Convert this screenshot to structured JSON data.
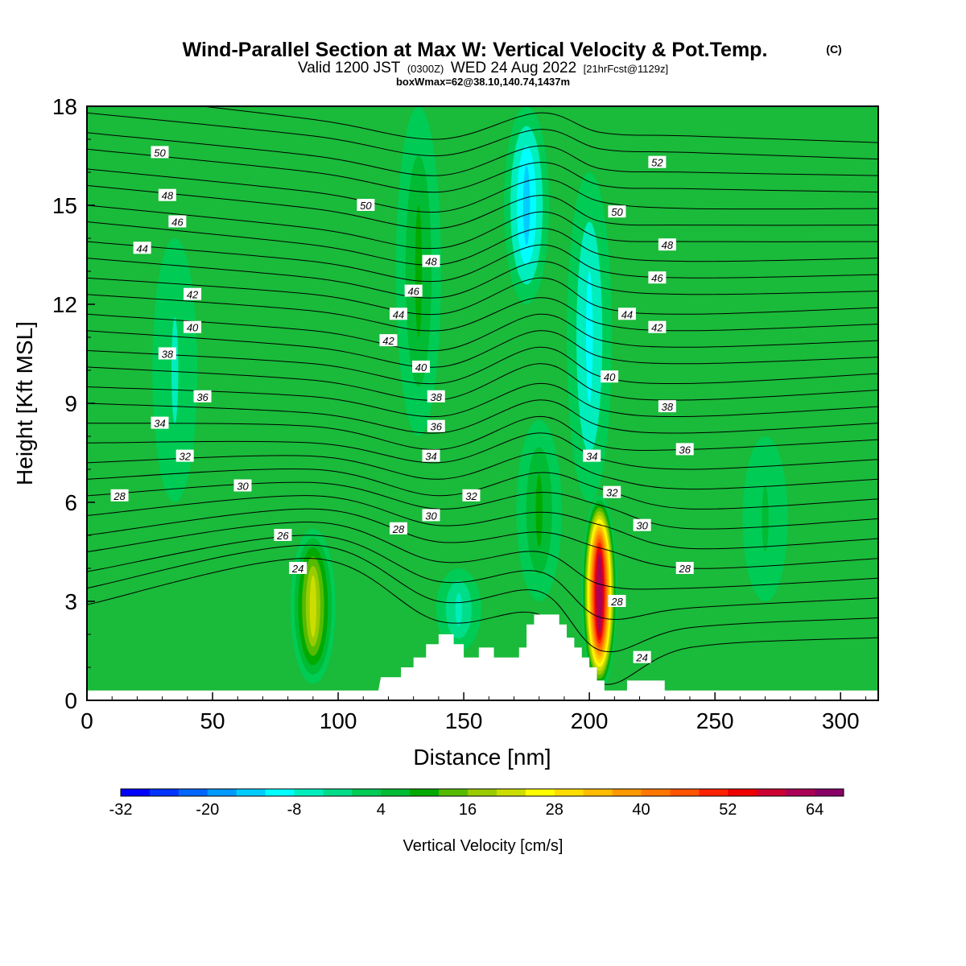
{
  "chart_data": {
    "type": "heatmap",
    "title": "Wind-Parallel Section at Max W: Vertical Velocity & Pot.Temp.",
    "title_mark": "(C)",
    "subtitle": {
      "prefix": "Valid 1200 JST",
      "utc": "(0300Z)",
      "date": "WED 24 Aug 2022",
      "forecast": "[21hrFcst@1129z]"
    },
    "box_info": "boxWmax=62@38.10,140.74,1437m",
    "xlabel": "Distance [nm]",
    "ylabel": "Height [Kft MSL]",
    "xlim": [
      0,
      315
    ],
    "ylim": [
      0,
      18
    ],
    "x_ticks": [
      {
        "value": 0,
        "label": "0"
      },
      {
        "value": 50,
        "label": "50"
      },
      {
        "value": 100,
        "label": "100"
      },
      {
        "value": 150,
        "label": "150"
      },
      {
        "value": 200,
        "label": "200"
      },
      {
        "value": 250,
        "label": "250"
      },
      {
        "value": 300,
        "label": "300"
      }
    ],
    "y_ticks": [
      {
        "value": 0,
        "label": "0"
      },
      {
        "value": 3,
        "label": "3"
      },
      {
        "value": 6,
        "label": "6"
      },
      {
        "value": 9,
        "label": "9"
      },
      {
        "value": 12,
        "label": "12"
      },
      {
        "value": 15,
        "label": "15"
      },
      {
        "value": 18,
        "label": "18"
      }
    ],
    "colorbar": {
      "label": "Vertical Velocity [cm/s]",
      "min": -32,
      "max": 68,
      "step": 4,
      "colors": [
        "#0000ff",
        "#0033ff",
        "#0066ff",
        "#0099ff",
        "#00ccff",
        "#00ffff",
        "#00eebb",
        "#00dd88",
        "#00cc55",
        "#00bb33",
        "#00aa00",
        "#55bb00",
        "#99cc00",
        "#ccdd00",
        "#ffff00",
        "#ffdd00",
        "#ffbb00",
        "#ff9900",
        "#ff7700",
        "#ff5500",
        "#ff2200",
        "#ee0000",
        "#cc0033",
        "#aa0055",
        "#880066"
      ],
      "tick_labels": [
        {
          "value": -32,
          "label": "-32"
        },
        {
          "value": -20,
          "label": "-20"
        },
        {
          "value": -8,
          "label": "-8"
        },
        {
          "value": 4,
          "label": "4"
        },
        {
          "value": 16,
          "label": "16"
        },
        {
          "value": 28,
          "label": "28"
        },
        {
          "value": 40,
          "label": "40"
        },
        {
          "value": 52,
          "label": "52"
        },
        {
          "value": 64,
          "label": "64"
        }
      ]
    },
    "vertical_velocity_features": [
      {
        "x": 90,
        "z_bottom": 0.5,
        "z_top": 5.2,
        "peak": 20
      },
      {
        "x": 204,
        "z_bottom": 0.3,
        "z_top": 6.2,
        "peak": 60
      },
      {
        "x": 180,
        "z_bottom": 3.0,
        "z_top": 8.5,
        "peak": 8
      },
      {
        "x": 132,
        "z_bottom": 8.0,
        "z_top": 18.0,
        "peak": 8
      },
      {
        "x": 270,
        "z_bottom": 3.0,
        "z_top": 8.0,
        "peak": 6
      },
      {
        "x": 175,
        "z_bottom": 12.0,
        "z_top": 18.0,
        "peak": -14
      },
      {
        "x": 200,
        "z_bottom": 6.0,
        "z_top": 16.0,
        "peak": -10
      },
      {
        "x": 35,
        "z_bottom": 6.0,
        "z_top": 14.0,
        "peak": -6
      },
      {
        "x": 148,
        "z_bottom": 1.5,
        "z_top": 4.0,
        "peak": -8
      }
    ],
    "terrain_profile": [
      [
        0,
        0.3
      ],
      [
        116,
        0.3
      ],
      [
        117,
        0.7
      ],
      [
        125,
        0.7
      ],
      [
        125,
        1.0
      ],
      [
        130,
        1.0
      ],
      [
        130,
        1.3
      ],
      [
        135,
        1.3
      ],
      [
        135,
        1.7
      ],
      [
        140,
        1.7
      ],
      [
        140,
        2.0
      ],
      [
        146,
        2.0
      ],
      [
        146,
        1.7
      ],
      [
        150,
        1.7
      ],
      [
        150,
        1.3
      ],
      [
        156,
        1.3
      ],
      [
        156,
        1.6
      ],
      [
        162,
        1.6
      ],
      [
        162,
        1.3
      ],
      [
        172,
        1.3
      ],
      [
        172,
        1.6
      ],
      [
        175,
        1.6
      ],
      [
        175,
        2.3
      ],
      [
        178,
        2.3
      ],
      [
        178,
        2.6
      ],
      [
        188,
        2.6
      ],
      [
        188,
        2.3
      ],
      [
        191,
        2.3
      ],
      [
        191,
        1.9
      ],
      [
        194,
        1.9
      ],
      [
        194,
        1.6
      ],
      [
        197,
        1.6
      ],
      [
        197,
        1.3
      ],
      [
        200,
        1.3
      ],
      [
        200,
        1.0
      ],
      [
        203,
        1.0
      ],
      [
        203,
        0.6
      ],
      [
        206,
        0.6
      ],
      [
        206,
        0.3
      ],
      [
        215,
        0.3
      ],
      [
        215,
        0.6
      ],
      [
        230,
        0.6
      ],
      [
        230,
        0.3
      ],
      [
        315,
        0.3
      ]
    ],
    "potential_temperature_contours": {
      "levels": [
        24,
        25,
        26,
        27,
        28,
        29,
        30,
        31,
        32,
        33,
        34,
        35,
        36,
        37,
        38,
        39,
        40,
        41,
        42,
        43,
        44,
        45,
        46,
        47,
        48,
        49,
        50,
        51,
        52
      ],
      "height_at_x": [
        {
          "x": 0,
          "heights": [
            2.9,
            3.4,
            3.9,
            4.5,
            5.0,
            5.6,
            6.2,
            6.7,
            7.2,
            7.8,
            8.4,
            9.0,
            9.5,
            10.1,
            10.6,
            11.2,
            11.7,
            12.3,
            12.8,
            13.4,
            13.9,
            14.5,
            15.0,
            15.6,
            16.1,
            16.7,
            17.2,
            17.8,
            18.4
          ]
        },
        {
          "x": 90,
          "heights": [
            4.3,
            4.7,
            5.0,
            5.4,
            5.8,
            6.2,
            6.6,
            7.0,
            7.4,
            7.8,
            8.3,
            8.7,
            9.2,
            9.7,
            10.2,
            10.7,
            11.2,
            11.8,
            12.3,
            12.8,
            13.3,
            13.8,
            14.3,
            14.9,
            15.4,
            16.0,
            16.5,
            17.1,
            17.6
          ]
        },
        {
          "x": 140,
          "heights": [
            2.4,
            3.0,
            3.6,
            4.2,
            4.8,
            5.3,
            5.8,
            6.2,
            6.7,
            7.2,
            7.6,
            8.1,
            8.6,
            9.1,
            9.6,
            10.1,
            10.6,
            11.2,
            11.7,
            12.2,
            12.7,
            13.2,
            13.7,
            14.3,
            14.8,
            15.4,
            15.9,
            16.5,
            17.0
          ]
        },
        {
          "x": 180,
          "heights": [
            2.6,
            3.3,
            3.9,
            4.5,
            5.1,
            5.7,
            6.3,
            6.9,
            7.5,
            8.1,
            8.6,
            9.1,
            9.6,
            10.2,
            10.7,
            11.2,
            11.7,
            12.2,
            12.8,
            13.3,
            13.8,
            14.3,
            14.8,
            15.3,
            15.8,
            16.3,
            16.8,
            17.3,
            17.8
          ]
        },
        {
          "x": 205,
          "heights": [
            0.5,
            1.5,
            2.5,
            3.5,
            4.6,
            5.3,
            5.9,
            6.4,
            6.8,
            7.3,
            7.7,
            8.3,
            8.8,
            9.3,
            9.8,
            10.4,
            10.9,
            11.4,
            11.9,
            12.5,
            13.0,
            13.5,
            14.0,
            14.5,
            15.1,
            15.6,
            16.1,
            16.7,
            17.2
          ]
        },
        {
          "x": 240,
          "heights": [
            1.6,
            2.2,
            2.8,
            3.4,
            4.0,
            4.6,
            5.2,
            5.8,
            6.4,
            7.0,
            7.6,
            8.1,
            8.6,
            9.1,
            9.6,
            10.2,
            10.7,
            11.2,
            11.7,
            12.3,
            12.8,
            13.3,
            13.9,
            14.4,
            14.9,
            15.5,
            16.0,
            16.6,
            17.1
          ]
        },
        {
          "x": 315,
          "heights": [
            1.9,
            2.5,
            3.1,
            3.7,
            4.3,
            4.9,
            5.5,
            6.1,
            6.7,
            7.3,
            7.9,
            8.4,
            8.9,
            9.4,
            9.9,
            10.4,
            10.9,
            11.4,
            11.9,
            12.4,
            12.9,
            13.4,
            13.9,
            14.4,
            14.9,
            15.4,
            15.9,
            16.4,
            16.9
          ]
        }
      ],
      "labels": [
        {
          "text": "50",
          "x": 29,
          "y": 16.6
        },
        {
          "text": "48",
          "x": 32,
          "y": 15.3
        },
        {
          "text": "46",
          "x": 36,
          "y": 14.5
        },
        {
          "text": "44",
          "x": 22,
          "y": 13.7
        },
        {
          "text": "42",
          "x": 42,
          "y": 12.3
        },
        {
          "text": "40",
          "x": 42,
          "y": 11.3
        },
        {
          "text": "38",
          "x": 32,
          "y": 10.5
        },
        {
          "text": "36",
          "x": 46,
          "y": 9.2
        },
        {
          "text": "34",
          "x": 29,
          "y": 8.4
        },
        {
          "text": "32",
          "x": 39,
          "y": 7.4
        },
        {
          "text": "30",
          "x": 62,
          "y": 6.5
        },
        {
          "text": "28",
          "x": 13,
          "y": 6.2
        },
        {
          "text": "26",
          "x": 78,
          "y": 5.0
        },
        {
          "text": "24",
          "x": 84,
          "y": 4.0
        },
        {
          "text": "50",
          "x": 111,
          "y": 15.0
        },
        {
          "text": "48",
          "x": 137,
          "y": 13.3
        },
        {
          "text": "46",
          "x": 130,
          "y": 12.4
        },
        {
          "text": "44",
          "x": 124,
          "y": 11.7
        },
        {
          "text": "42",
          "x": 120,
          "y": 10.9
        },
        {
          "text": "40",
          "x": 133,
          "y": 10.1
        },
        {
          "text": "38",
          "x": 139,
          "y": 9.2
        },
        {
          "text": "36",
          "x": 139,
          "y": 8.3
        },
        {
          "text": "34",
          "x": 137,
          "y": 7.4
        },
        {
          "text": "32",
          "x": 153,
          "y": 6.2
        },
        {
          "text": "30",
          "x": 137,
          "y": 5.6
        },
        {
          "text": "28",
          "x": 124,
          "y": 5.2
        },
        {
          "text": "52",
          "x": 227,
          "y": 16.3
        },
        {
          "text": "50",
          "x": 211,
          "y": 14.8
        },
        {
          "text": "48",
          "x": 231,
          "y": 13.8
        },
        {
          "text": "46",
          "x": 227,
          "y": 12.8
        },
        {
          "text": "44",
          "x": 215,
          "y": 11.7
        },
        {
          "text": "42",
          "x": 227,
          "y": 11.3
        },
        {
          "text": "40",
          "x": 208,
          "y": 9.8
        },
        {
          "text": "38",
          "x": 231,
          "y": 8.9
        },
        {
          "text": "36",
          "x": 238,
          "y": 7.6
        },
        {
          "text": "34",
          "x": 201,
          "y": 7.4
        },
        {
          "text": "32",
          "x": 209,
          "y": 6.3
        },
        {
          "text": "30",
          "x": 221,
          "y": 5.3
        },
        {
          "text": "28",
          "x": 238,
          "y": 4.0
        },
        {
          "text": "28",
          "x": 211,
          "y": 3.0
        },
        {
          "text": "24",
          "x": 221,
          "y": 1.3
        }
      ]
    }
  }
}
